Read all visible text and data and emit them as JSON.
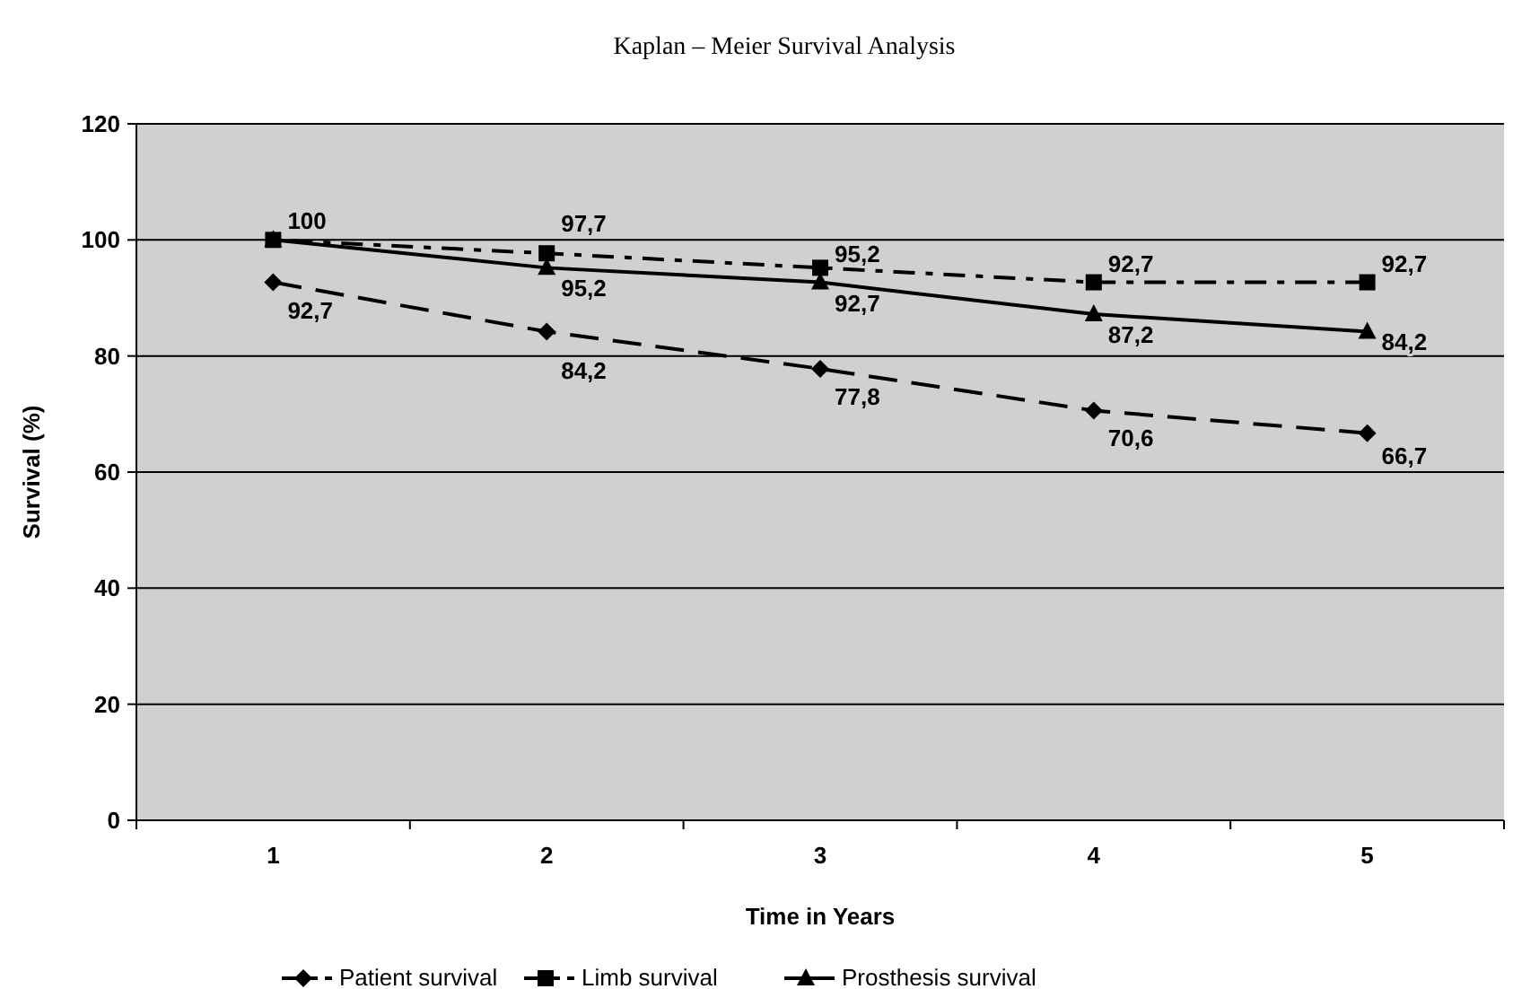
{
  "chart_data": {
    "type": "line",
    "title": "Kaplan – Meier Survival Analysis",
    "xlabel": "Time in Years",
    "ylabel": "Survival (%)",
    "categories": [
      "1",
      "2",
      "3",
      "4",
      "5"
    ],
    "ylim": [
      0,
      120
    ],
    "yticks": [
      0,
      20,
      40,
      60,
      80,
      100,
      120
    ],
    "grid": "y",
    "legend": "bottom",
    "series": [
      {
        "name": "Patient survival",
        "color": "#000000",
        "marker": "diamond",
        "line_style": "dashed",
        "values": [
          92.7,
          84.2,
          77.8,
          70.6,
          66.7
        ],
        "value_labels": [
          "92,7",
          "84,2",
          "77,8",
          "70,6",
          "66,7"
        ]
      },
      {
        "name": "Limb survival",
        "color": "#000000",
        "marker": "square",
        "line_style": "dotted",
        "values": [
          100,
          97.7,
          95.2,
          92.7,
          92.7
        ],
        "value_labels": [
          "100",
          "97,7",
          "95,2",
          "92,7",
          "92,7"
        ]
      },
      {
        "name": "Prosthesis survival",
        "color": "#000000",
        "marker": "triangle",
        "line_style": "solid",
        "values": [
          100,
          95.2,
          92.7,
          87.2,
          84.2
        ],
        "value_labels": [
          null,
          "95,2",
          "92,7",
          "87,2",
          "84,2"
        ]
      }
    ]
  }
}
